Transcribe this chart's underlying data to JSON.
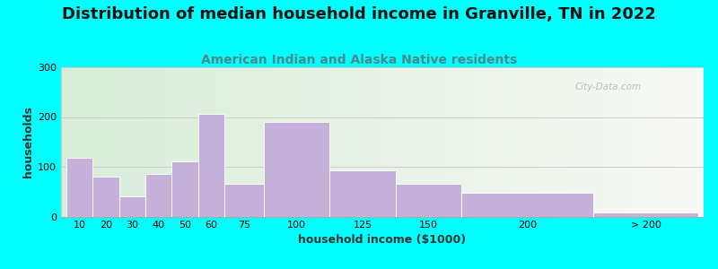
{
  "title": "Distribution of median household income in Granville, TN in 2022",
  "subtitle": "American Indian and Alaska Native residents",
  "xlabel": "household income ($1000)",
  "ylabel": "households",
  "background_outer": "#00FFFF",
  "bar_color": "#C4B0D8",
  "bar_edge_color": "#FFFFFF",
  "categories": [
    "10",
    "20",
    "30",
    "40",
    "50",
    "60",
    "75",
    "100",
    "125",
    "150",
    "200",
    "> 200"
  ],
  "values": [
    118,
    80,
    40,
    85,
    110,
    207,
    65,
    190,
    92,
    65,
    47,
    8
  ],
  "bar_lefts": [
    0,
    10,
    20,
    30,
    40,
    50,
    60,
    75,
    100,
    125,
    150,
    200
  ],
  "bar_widths": [
    10,
    10,
    10,
    10,
    10,
    10,
    15,
    25,
    25,
    25,
    50,
    40
  ],
  "xlim": [
    -2,
    242
  ],
  "ylim": [
    0,
    300
  ],
  "yticks": [
    0,
    100,
    200,
    300
  ],
  "xtick_positions": [
    5,
    15,
    25,
    35,
    45,
    55,
    67.5,
    87.5,
    112.5,
    137.5,
    175,
    220
  ],
  "xtick_labels": [
    "10",
    "20",
    "30",
    "40",
    "50",
    "60",
    "75",
    "100",
    "125",
    "150",
    "200",
    "> 200"
  ],
  "title_fontsize": 13,
  "subtitle_fontsize": 10,
  "axis_label_fontsize": 9,
  "tick_fontsize": 8,
  "watermark": "City-Data.com",
  "subtitle_color": "#4A8A8A",
  "title_color": "#111111"
}
